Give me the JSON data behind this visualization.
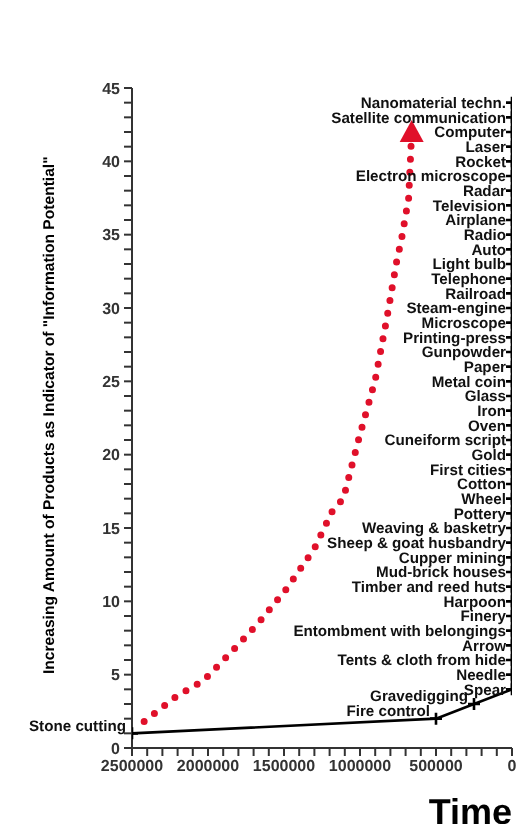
{
  "chart_data": {
    "type": "line",
    "ylabel": "Increasing Amount of Products as Indicator of  \"Information Potential\"",
    "xlabel": "Time",
    "xlim": [
      2500000,
      0
    ],
    "xticks": [
      2500000,
      {
        "value": 2400000,
        "label": null
      },
      {
        "value": 2300000,
        "label": null
      },
      {
        "value": 2200000,
        "label": null
      },
      {
        "value": 2100000,
        "label": null
      },
      2000000,
      {
        "value": 1900000,
        "label": null
      },
      {
        "value": 1800000,
        "label": null
      },
      {
        "value": 1700000,
        "label": null
      },
      {
        "value": 1600000,
        "label": null
      },
      1500000,
      {
        "value": 1400000,
        "label": null
      },
      {
        "value": 1300000,
        "label": null
      },
      {
        "value": 1200000,
        "label": null
      },
      {
        "value": 1100000,
        "label": null
      },
      1000000,
      {
        "value": 900000,
        "label": null
      },
      {
        "value": 800000,
        "label": null
      },
      {
        "value": 700000,
        "label": null
      },
      {
        "value": 600000,
        "label": null
      },
      500000,
      {
        "value": 400000,
        "label": null
      },
      {
        "value": 300000,
        "label": null
      },
      {
        "value": 200000,
        "label": null
      },
      {
        "value": 100000,
        "label": null
      },
      0
    ],
    "ylim": [
      0,
      45
    ],
    "yticks": [
      0,
      {
        "value": 1,
        "label": null
      },
      {
        "value": 2,
        "label": null
      },
      {
        "value": 3,
        "label": null
      },
      {
        "value": 4,
        "label": null
      },
      5,
      {
        "value": 6,
        "label": null
      },
      {
        "value": 7,
        "label": null
      },
      {
        "value": 8,
        "label": null
      },
      {
        "value": 9,
        "label": null
      },
      10,
      {
        "value": 11,
        "label": null
      },
      {
        "value": 12,
        "label": null
      },
      {
        "value": 13,
        "label": null
      },
      {
        "value": 14,
        "label": null
      },
      15,
      {
        "value": 16,
        "label": null
      },
      {
        "value": 17,
        "label": null
      },
      {
        "value": 18,
        "label": null
      },
      {
        "value": 19,
        "label": null
      },
      20,
      {
        "value": 21,
        "label": null
      },
      {
        "value": 22,
        "label": null
      },
      {
        "value": 23,
        "label": null
      },
      {
        "value": 24,
        "label": null
      },
      25,
      {
        "value": 26,
        "label": null
      },
      {
        "value": 27,
        "label": null
      },
      {
        "value": 28,
        "label": null
      },
      {
        "value": 29,
        "label": null
      },
      30,
      {
        "value": 31,
        "label": null
      },
      {
        "value": 32,
        "label": null
      },
      {
        "value": 33,
        "label": null
      },
      {
        "value": 34,
        "label": null
      },
      35,
      {
        "value": 36,
        "label": null
      },
      {
        "value": 37,
        "label": null
      },
      {
        "value": 38,
        "label": null
      },
      {
        "value": 39,
        "label": null
      },
      40,
      {
        "value": 41,
        "label": null
      },
      {
        "value": 42,
        "label": null
      },
      {
        "value": 43,
        "label": null
      },
      {
        "value": 44,
        "label": null
      },
      45
    ],
    "series": [
      {
        "color": "#000000",
        "marker": "cross",
        "line_style": "solid",
        "x": [
          2500000,
          500000,
          250000,
          0,
          0,
          0,
          0,
          0,
          0,
          0,
          0,
          0,
          0,
          0,
          0,
          0,
          0,
          0,
          0,
          0,
          0,
          0,
          0,
          0,
          0,
          0,
          0,
          0,
          0,
          0,
          0,
          0,
          0,
          0,
          0,
          0,
          0,
          0,
          0,
          0,
          0,
          0,
          0,
          0
        ],
        "values": [
          1,
          2,
          3,
          4,
          5,
          6,
          7,
          8,
          9,
          10,
          11,
          12,
          13,
          14,
          15,
          16,
          17,
          18,
          19,
          20,
          21,
          22,
          23,
          24,
          25,
          26,
          27,
          28,
          29,
          30,
          31,
          32,
          33,
          34,
          35,
          36,
          37,
          38,
          39,
          40,
          41,
          42,
          43,
          44
        ]
      },
      {
        "color": "#e0102a",
        "line_style": "dotted",
        "x": [
          2420000,
          2210000,
          2030000,
          1860000,
          1670000,
          1480000,
          1300000,
          1180000,
          1110000,
          1010000,
          900000,
          825000,
          755000,
          730000,
          680000,
          660000
        ],
        "values": [
          1.8,
          3.5,
          4.6,
          6.4,
          8.5,
          10.9,
          13.6,
          16.2,
          17,
          21,
          25.1,
          29.2,
          33.4,
          34.5,
          37.5,
          42
        ]
      }
    ],
    "annotations": [
      {
        "text": "Stone cutting",
        "x": 2500000,
        "y": 1
      },
      {
        "text": "Fire control",
        "x": 500000,
        "y": 2
      },
      {
        "text": "Gravedigging",
        "x": 250000,
        "y": 3
      },
      {
        "text": "Spear",
        "x": 0,
        "y": 4
      },
      {
        "text": "Needle",
        "x": 0,
        "y": 5
      },
      {
        "text": "Tents & cloth from hide",
        "x": 0,
        "y": 6
      },
      {
        "text": "Arrow",
        "x": 0,
        "y": 7
      },
      {
        "text": "Entombment with belongings",
        "x": 0,
        "y": 8
      },
      {
        "text": "Finery",
        "x": 0,
        "y": 9
      },
      {
        "text": "Harpoon",
        "x": 0,
        "y": 10
      },
      {
        "text": "Timber and reed huts",
        "x": 0,
        "y": 11
      },
      {
        "text": "Mud-brick houses",
        "x": 0,
        "y": 12
      },
      {
        "text": "Cupper mining",
        "x": 0,
        "y": 13
      },
      {
        "text": "Sheep & goat husbandry",
        "x": 0,
        "y": 14
      },
      {
        "text": "Weaving & basketry",
        "x": 0,
        "y": 15
      },
      {
        "text": "Pottery",
        "x": 0,
        "y": 16
      },
      {
        "text": "Wheel",
        "x": 0,
        "y": 17
      },
      {
        "text": "Cotton",
        "x": 0,
        "y": 18
      },
      {
        "text": "First cities",
        "x": 0,
        "y": 19
      },
      {
        "text": "Gold",
        "x": 0,
        "y": 20
      },
      {
        "text": "Cuneiform script",
        "x": 0,
        "y": 21
      },
      {
        "text": "Oven",
        "x": 0,
        "y": 22
      },
      {
        "text": "Iron",
        "x": 0,
        "y": 23
      },
      {
        "text": "Glass",
        "x": 0,
        "y": 24
      },
      {
        "text": "Metal coin",
        "x": 0,
        "y": 25
      },
      {
        "text": "Paper",
        "x": 0,
        "y": 26
      },
      {
        "text": "Gunpowder",
        "x": 0,
        "y": 27
      },
      {
        "text": "Printing-press",
        "x": 0,
        "y": 28
      },
      {
        "text": "Microscope",
        "x": 0,
        "y": 29
      },
      {
        "text": "Steam-engine",
        "x": 0,
        "y": 30
      },
      {
        "text": "Railroad",
        "x": 0,
        "y": 31
      },
      {
        "text": "Telephone",
        "x": 0,
        "y": 32
      },
      {
        "text": "Light bulb",
        "x": 0,
        "y": 33
      },
      {
        "text": "Auto",
        "x": 0,
        "y": 34
      },
      {
        "text": "Radio",
        "x": 0,
        "y": 35
      },
      {
        "text": "Airplane",
        "x": 0,
        "y": 36
      },
      {
        "text": "Television",
        "x": 0,
        "y": 37
      },
      {
        "text": "Radar",
        "x": 0,
        "y": 38
      },
      {
        "text": "Electron microscope",
        "x": 0,
        "y": 39
      },
      {
        "text": "Rocket",
        "x": 0,
        "y": 40
      },
      {
        "text": "Laser",
        "x": 0,
        "y": 41
      },
      {
        "text": "Computer",
        "x": 0,
        "y": 42
      },
      {
        "text": "Satellite communication",
        "x": 0,
        "y": 43
      },
      {
        "text": "Nanomaterial techn.",
        "x": 0,
        "y": 44
      }
    ]
  }
}
